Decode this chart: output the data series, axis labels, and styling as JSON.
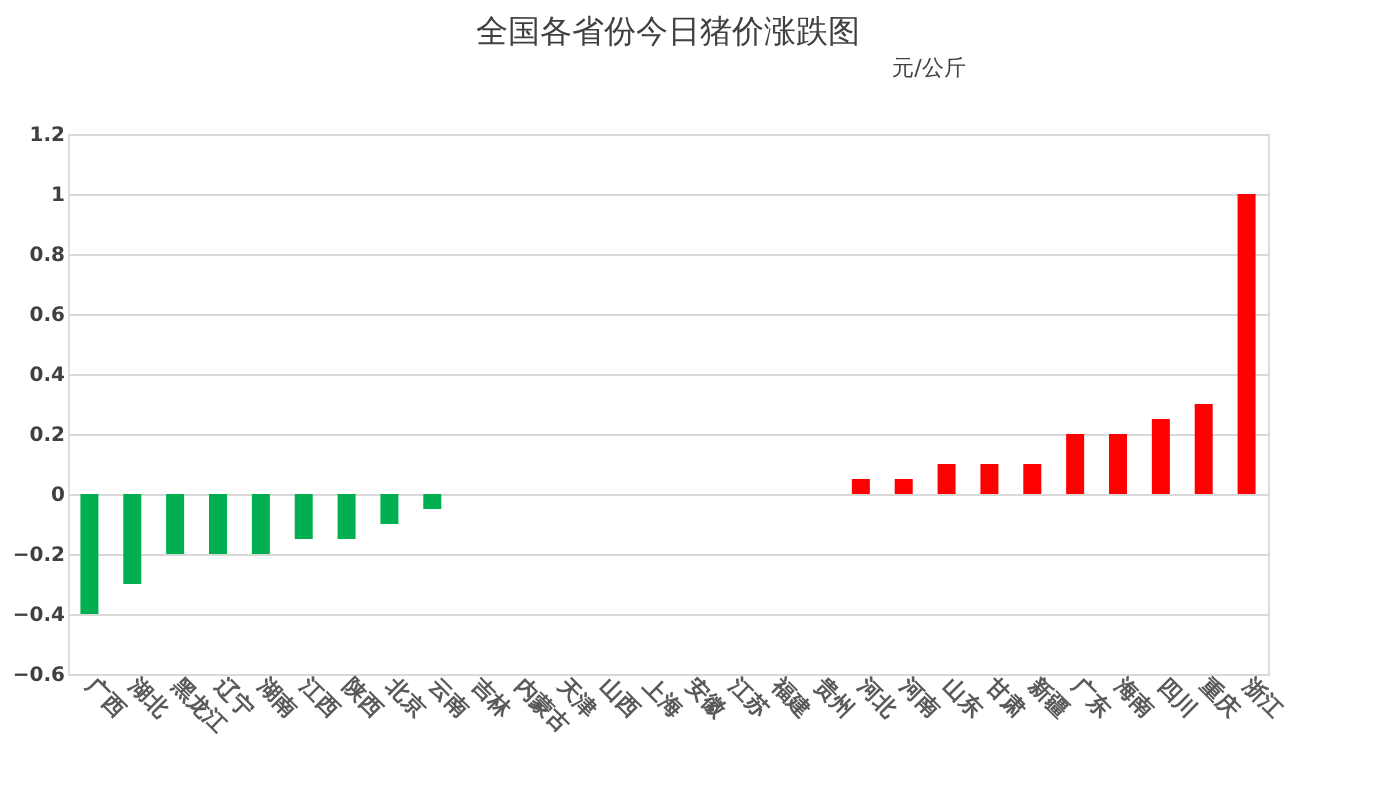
{
  "chart_data": {
    "type": "bar",
    "title": "全国各省份今日猪价涨跌图",
    "ylabel": "元/公斤",
    "categories": [
      "广西",
      "湖北",
      "黑龙江",
      "辽宁",
      "湖南",
      "江西",
      "陕西",
      "北京",
      "云南",
      "吉林",
      "内蒙古",
      "天津",
      "山西",
      "上海",
      "安徽",
      "江苏",
      "福建",
      "贵州",
      "河北",
      "河南",
      "山东",
      "甘肃",
      "新疆",
      "广东",
      "海南",
      "四川",
      "重庆",
      "浙江"
    ],
    "values": [
      -0.4,
      -0.3,
      -0.2,
      -0.2,
      -0.2,
      -0.15,
      -0.15,
      -0.1,
      -0.05,
      0,
      0,
      0,
      0,
      0,
      0,
      0,
      0,
      0,
      0.05,
      0.05,
      0.1,
      0.1,
      0.1,
      0.2,
      0.2,
      0.25,
      0.3,
      1.0
    ],
    "colors": [
      "#00b050",
      "#00b050",
      "#00b050",
      "#00b050",
      "#00b050",
      "#00b050",
      "#00b050",
      "#00b050",
      "#00b050",
      "#00b050",
      "#00b050",
      "#00b050",
      "#00b050",
      "#00b050",
      "#00b050",
      "#00b050",
      "#00b050",
      "#00b050",
      "#ff0000",
      "#ff0000",
      "#ff0000",
      "#ff0000",
      "#ff0000",
      "#ff0000",
      "#ff0000",
      "#ff0000",
      "#ff0000",
      "#ff0000"
    ],
    "ylim": [
      -0.6,
      1.2
    ],
    "yticks": [
      -0.6,
      -0.4,
      -0.2,
      0,
      0.2,
      0.4,
      0.6,
      0.8,
      1,
      1.2
    ],
    "grid": "y"
  }
}
